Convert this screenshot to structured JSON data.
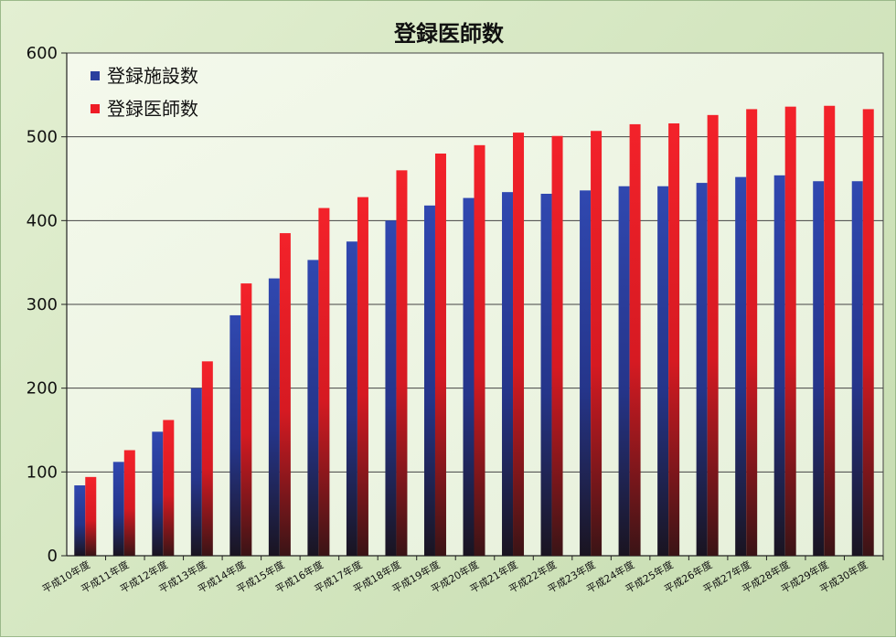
{
  "chart_data": {
    "type": "bar",
    "title": "登録医師数",
    "xlabel": "",
    "ylabel": "",
    "ylim": [
      0,
      600
    ],
    "yticks": [
      0,
      100,
      200,
      300,
      400,
      500,
      600
    ],
    "grid": true,
    "legend_position": "top-left",
    "categories": [
      "平成10年度",
      "平成11年度",
      "平成12年度",
      "平成13年度",
      "平成14年度",
      "平成15年度",
      "平成16年度",
      "平成17年度",
      "平成18年度",
      "平成19年度",
      "平成20年度",
      "平成21年度",
      "平成22年度",
      "平成23年度",
      "平成24年度",
      "平成25年度",
      "平成26年度",
      "平成27年度",
      "平成28年度",
      "平成29年度",
      "平成30年度"
    ],
    "series": [
      {
        "name": "登録施設数",
        "color": "#2a3f9e",
        "values": [
          84,
          112,
          148,
          200,
          287,
          331,
          353,
          375,
          400,
          418,
          427,
          434,
          432,
          436,
          441,
          441,
          445,
          452,
          454,
          447,
          447
        ]
      },
      {
        "name": "登録医師数",
        "color": "#ee1c25",
        "values": [
          94,
          126,
          162,
          232,
          325,
          385,
          415,
          428,
          460,
          480,
          490,
          505,
          501,
          507,
          515,
          516,
          526,
          533,
          536,
          537,
          533
        ]
      }
    ]
  }
}
